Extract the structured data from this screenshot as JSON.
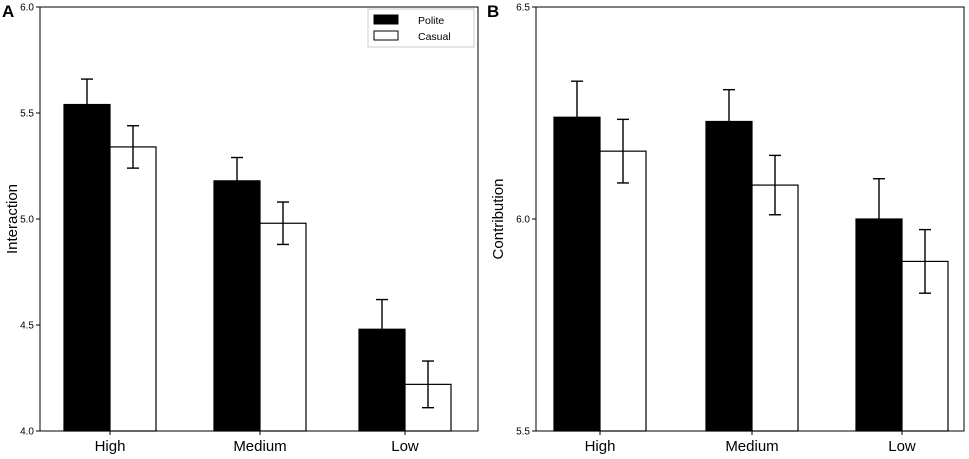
{
  "chart_data": [
    {
      "panel": "A",
      "type": "bar",
      "title": "",
      "xlabel": "",
      "ylabel": "Interaction",
      "ylim": [
        4.0,
        6.0
      ],
      "yticks": [
        "4.0",
        "4.5",
        "5.0",
        "5.5",
        "6.0"
      ],
      "categories": [
        "High",
        "Medium",
        "Low"
      ],
      "series": [
        {
          "name": "Polite",
          "values": [
            5.54,
            5.18,
            4.48
          ],
          "errors": [
            0.12,
            0.11,
            0.14
          ]
        },
        {
          "name": "Casual",
          "values": [
            5.34,
            4.98,
            4.22
          ],
          "errors": [
            0.1,
            0.1,
            0.11
          ]
        }
      ],
      "legend": {
        "position": "top-right",
        "entries": [
          "Polite",
          "Casual"
        ]
      }
    },
    {
      "panel": "B",
      "type": "bar",
      "title": "",
      "xlabel": "",
      "ylabel": "Contribution",
      "ylim": [
        5.5,
        6.5
      ],
      "yticks": [
        "5.5",
        "6.0",
        "6.5"
      ],
      "categories": [
        "High",
        "Medium",
        "Low"
      ],
      "series": [
        {
          "name": "Polite",
          "values": [
            6.24,
            6.23,
            6.0
          ],
          "errors": [
            0.085,
            0.075,
            0.095
          ]
        },
        {
          "name": "Casual",
          "values": [
            6.16,
            6.08,
            5.9
          ],
          "errors": [
            0.075,
            0.07,
            0.075
          ]
        }
      ]
    }
  ],
  "colors": {
    "polite": "#000000",
    "casual": "#ffffff",
    "axis": "#000000"
  }
}
